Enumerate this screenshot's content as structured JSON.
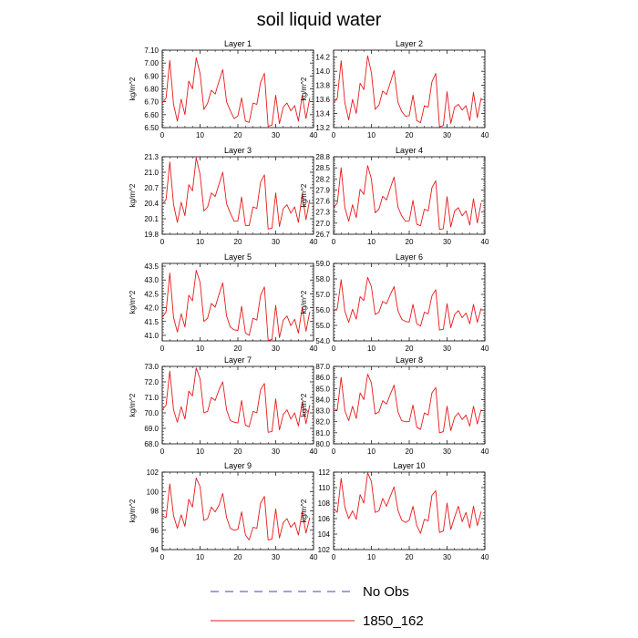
{
  "figure_title": "soil liquid water",
  "legend": [
    {
      "label": "No Obs",
      "color": "#4a3fa8",
      "style": "dashed"
    },
    {
      "label": "1850_162",
      "color": "#e8191a",
      "style": "solid"
    }
  ],
  "series_color": "#e8191a",
  "chart_data": [
    {
      "type": "line",
      "title": "Layer 1",
      "ylabel": "kg/m^2",
      "xlim": [
        0,
        40
      ],
      "xticks": [
        0,
        10,
        20,
        30,
        40
      ],
      "ylim": [
        6.5,
        7.1
      ],
      "yticks": [
        "6.50",
        "6.60",
        "6.70",
        "6.80",
        "6.90",
        "7.00",
        "7.10"
      ],
      "series": [
        {
          "name": "1850_162",
          "x": [
            0,
            1,
            2,
            3,
            4,
            5,
            6,
            7,
            8,
            9,
            10,
            11,
            12,
            13,
            14,
            15,
            16,
            17,
            18,
            19,
            20,
            21,
            22,
            23,
            24,
            25,
            26,
            27,
            28,
            29,
            30,
            31,
            32,
            33,
            34,
            35,
            36,
            37,
            38,
            39
          ],
          "y": [
            6.69,
            6.73,
            7.02,
            6.68,
            6.55,
            6.72,
            6.6,
            6.86,
            6.8,
            7.04,
            6.92,
            6.64,
            6.69,
            6.79,
            6.76,
            6.86,
            6.95,
            6.7,
            6.63,
            6.57,
            6.59,
            6.73,
            6.55,
            6.54,
            6.69,
            6.68,
            6.85,
            6.92,
            6.51,
            6.52,
            6.75,
            6.53,
            6.66,
            6.69,
            6.63,
            6.67,
            6.55,
            6.75,
            6.57,
            6.73
          ]
        }
      ]
    },
    {
      "type": "line",
      "title": "Layer 2",
      "ylabel": "kg/m^2",
      "xlim": [
        0,
        40
      ],
      "xticks": [
        0,
        10,
        20,
        30,
        40
      ],
      "ylim": [
        13.2,
        14.3
      ],
      "yticks": [
        "13.2",
        "13.4",
        "13.6",
        "13.8",
        "14.0",
        "14.2"
      ],
      "series": [
        {
          "name": "1850_162",
          "x": [
            0,
            1,
            2,
            3,
            4,
            5,
            6,
            7,
            8,
            9,
            10,
            11,
            12,
            13,
            14,
            15,
            16,
            17,
            18,
            19,
            20,
            21,
            22,
            23,
            24,
            25,
            26,
            27,
            28,
            29,
            30,
            31,
            32,
            33,
            34,
            35,
            36,
            37,
            38,
            39
          ],
          "y": [
            13.55,
            13.62,
            14.15,
            13.55,
            13.31,
            13.6,
            13.4,
            13.83,
            13.74,
            14.22,
            13.98,
            13.46,
            13.52,
            13.72,
            13.67,
            13.84,
            14.01,
            13.56,
            13.43,
            13.36,
            13.37,
            13.66,
            13.3,
            13.27,
            13.51,
            13.49,
            13.85,
            13.97,
            13.21,
            13.23,
            13.71,
            13.26,
            13.49,
            13.53,
            13.45,
            13.51,
            13.3,
            13.7,
            13.34,
            13.62
          ]
        }
      ]
    },
    {
      "type": "line",
      "title": "Layer 3",
      "ylabel": "kg/m^2",
      "xlim": [
        0,
        40
      ],
      "xticks": [
        0,
        10,
        20,
        30,
        40
      ],
      "ylim": [
        19.8,
        21.3
      ],
      "yticks": [
        "19.8",
        "20.1",
        "20.4",
        "20.7",
        "21.0",
        "21.3"
      ],
      "series": [
        {
          "name": "1850_162",
          "x": [
            0,
            1,
            2,
            3,
            4,
            5,
            6,
            7,
            8,
            9,
            10,
            11,
            12,
            13,
            14,
            15,
            16,
            17,
            18,
            19,
            20,
            21,
            22,
            23,
            24,
            25,
            26,
            27,
            28,
            29,
            30,
            31,
            32,
            33,
            34,
            35,
            36,
            37,
            38,
            39
          ],
          "y": [
            20.38,
            20.47,
            21.2,
            20.38,
            20.03,
            20.42,
            20.16,
            20.76,
            20.64,
            21.28,
            20.96,
            20.25,
            20.33,
            20.6,
            20.53,
            20.77,
            21.0,
            20.39,
            20.21,
            20.05,
            20.06,
            20.52,
            19.97,
            19.97,
            20.33,
            20.3,
            20.81,
            20.95,
            19.9,
            19.92,
            20.6,
            19.95,
            20.3,
            20.37,
            20.21,
            20.33,
            20.03,
            20.58,
            20.08,
            20.47
          ]
        }
      ]
    },
    {
      "type": "line",
      "title": "Layer 4",
      "ylabel": "kg/m^2",
      "xlim": [
        0,
        40
      ],
      "xticks": [
        0,
        10,
        20,
        30,
        40
      ],
      "ylim": [
        26.7,
        28.8
      ],
      "yticks": [
        "26.7",
        "27.0",
        "27.3",
        "27.6",
        "27.9",
        "28.2",
        "28.5",
        "28.8"
      ],
      "series": [
        {
          "name": "1850_162",
          "x": [
            0,
            1,
            2,
            3,
            4,
            5,
            6,
            7,
            8,
            9,
            10,
            11,
            12,
            13,
            14,
            15,
            16,
            17,
            18,
            19,
            20,
            21,
            22,
            23,
            24,
            25,
            26,
            27,
            28,
            29,
            30,
            31,
            32,
            33,
            34,
            35,
            36,
            37,
            38,
            39
          ],
          "y": [
            27.42,
            27.55,
            28.5,
            27.42,
            27.05,
            27.5,
            27.15,
            27.92,
            27.78,
            28.56,
            28.2,
            27.28,
            27.38,
            27.73,
            27.63,
            27.96,
            28.25,
            27.44,
            27.2,
            27.05,
            27.06,
            27.62,
            26.97,
            26.93,
            27.38,
            27.33,
            27.96,
            28.15,
            26.83,
            26.85,
            27.72,
            26.9,
            27.33,
            27.42,
            27.2,
            27.33,
            26.95,
            27.66,
            27.01,
            27.55
          ]
        }
      ]
    },
    {
      "type": "line",
      "title": "Layer 5",
      "ylabel": "kg/m^2",
      "xlim": [
        0,
        40
      ],
      "xticks": [
        0,
        10,
        20,
        30,
        40
      ],
      "ylim": [
        40.8,
        43.6
      ],
      "yticks": [
        "41.0",
        "41.5",
        "42.0",
        "42.5",
        "43.0",
        "43.5"
      ],
      "series": [
        {
          "name": "1850_162",
          "x": [
            0,
            1,
            2,
            3,
            4,
            5,
            6,
            7,
            8,
            9,
            10,
            11,
            12,
            13,
            14,
            15,
            16,
            17,
            18,
            19,
            20,
            21,
            22,
            23,
            24,
            25,
            26,
            27,
            28,
            29,
            30,
            31,
            32,
            33,
            34,
            35,
            36,
            37,
            38,
            39
          ],
          "y": [
            41.65,
            41.85,
            43.25,
            41.65,
            41.12,
            41.78,
            41.3,
            42.45,
            42.25,
            43.35,
            42.92,
            41.5,
            41.62,
            42.15,
            42.02,
            42.48,
            42.9,
            41.7,
            41.3,
            41.2,
            41.18,
            42.05,
            41.08,
            41.0,
            41.62,
            41.55,
            42.45,
            42.75,
            40.82,
            40.85,
            42.08,
            40.92,
            41.55,
            41.7,
            41.35,
            41.58,
            41.08,
            42.02,
            41.15,
            41.85
          ]
        }
      ]
    },
    {
      "type": "line",
      "title": "Layer 6",
      "ylabel": "kg/m^2",
      "xlim": [
        0,
        40
      ],
      "xticks": [
        0,
        10,
        20,
        30,
        40
      ],
      "ylim": [
        54.0,
        59.0
      ],
      "yticks": [
        "54.0",
        "55.0",
        "56.0",
        "57.0",
        "58.0",
        "59.0"
      ],
      "series": [
        {
          "name": "1850_162",
          "x": [
            0,
            1,
            2,
            3,
            4,
            5,
            6,
            7,
            8,
            9,
            10,
            11,
            12,
            13,
            14,
            15,
            16,
            17,
            18,
            19,
            20,
            21,
            22,
            23,
            24,
            25,
            26,
            27,
            28,
            29,
            30,
            31,
            32,
            33,
            34,
            35,
            36,
            37,
            38,
            39
          ],
          "y": [
            55.9,
            56.1,
            57.95,
            55.9,
            55.2,
            56.05,
            55.4,
            56.85,
            56.6,
            58.1,
            57.5,
            55.7,
            55.85,
            56.55,
            56.4,
            57.0,
            57.5,
            55.95,
            55.4,
            55.25,
            55.22,
            56.35,
            55.1,
            54.95,
            55.85,
            55.75,
            56.9,
            57.3,
            54.7,
            54.75,
            56.4,
            54.85,
            55.7,
            55.95,
            55.5,
            55.8,
            55.1,
            56.35,
            55.2,
            56.1
          ]
        }
      ]
    },
    {
      "type": "line",
      "title": "Layer 7",
      "ylabel": "kg/m^2",
      "xlim": [
        0,
        40
      ],
      "xticks": [
        0,
        10,
        20,
        30,
        40
      ],
      "ylim": [
        68.0,
        73.0
      ],
      "yticks": [
        "68.0",
        "69.0",
        "70.0",
        "71.0",
        "72.0",
        "73.0"
      ],
      "series": [
        {
          "name": "1850_162",
          "x": [
            0,
            1,
            2,
            3,
            4,
            5,
            6,
            7,
            8,
            9,
            10,
            11,
            12,
            13,
            14,
            15,
            16,
            17,
            18,
            19,
            20,
            21,
            22,
            23,
            24,
            25,
            26,
            27,
            28,
            29,
            30,
            31,
            32,
            33,
            34,
            35,
            36,
            37,
            38,
            39
          ],
          "y": [
            70.2,
            70.5,
            72.7,
            70.2,
            69.4,
            70.4,
            69.6,
            71.4,
            71.1,
            72.9,
            72.2,
            70.0,
            70.1,
            71.0,
            70.8,
            71.5,
            72.0,
            70.2,
            69.5,
            69.4,
            69.35,
            70.8,
            69.2,
            69.1,
            70.1,
            70.0,
            71.5,
            71.9,
            68.75,
            68.8,
            70.9,
            68.9,
            69.9,
            70.2,
            69.6,
            70.0,
            69.15,
            70.7,
            69.3,
            70.5
          ]
        }
      ]
    },
    {
      "type": "line",
      "title": "Layer 8",
      "ylabel": "kg/m^2",
      "xlim": [
        0,
        40
      ],
      "xticks": [
        0,
        10,
        20,
        30,
        40
      ],
      "ylim": [
        80.0,
        87.0
      ],
      "yticks": [
        "80.0",
        "81.0",
        "82.0",
        "83.0",
        "84.0",
        "85.0",
        "86.0",
        "87.0"
      ],
      "series": [
        {
          "name": "1850_162",
          "x": [
            0,
            1,
            2,
            3,
            4,
            5,
            6,
            7,
            8,
            9,
            10,
            11,
            12,
            13,
            14,
            15,
            16,
            17,
            18,
            19,
            20,
            21,
            22,
            23,
            24,
            25,
            26,
            27,
            28,
            29,
            30,
            31,
            32,
            33,
            34,
            35,
            36,
            37,
            38,
            39
          ],
          "y": [
            83.0,
            83.1,
            86.0,
            83.0,
            82.1,
            83.4,
            82.3,
            84.6,
            84.0,
            86.3,
            85.5,
            82.7,
            82.9,
            83.9,
            83.6,
            84.5,
            85.3,
            82.9,
            82.1,
            82.0,
            82.0,
            83.5,
            81.5,
            81.3,
            82.8,
            82.6,
            84.6,
            85.1,
            81.0,
            81.1,
            83.4,
            81.2,
            82.4,
            82.8,
            82.2,
            82.6,
            81.6,
            83.4,
            81.8,
            83.1
          ]
        }
      ]
    },
    {
      "type": "line",
      "title": "Layer 9",
      "ylabel": "kg/m^2",
      "xlim": [
        0,
        40
      ],
      "xticks": [
        0,
        10,
        20,
        30,
        40
      ],
      "ylim": [
        94,
        102
      ],
      "yticks": [
        "94",
        "96",
        "98",
        "100",
        "102"
      ],
      "series": [
        {
          "name": "1850_162",
          "x": [
            0,
            1,
            2,
            3,
            4,
            5,
            6,
            7,
            8,
            9,
            10,
            11,
            12,
            13,
            14,
            15,
            16,
            17,
            18,
            19,
            20,
            21,
            22,
            23,
            24,
            25,
            26,
            27,
            28,
            29,
            30,
            31,
            32,
            33,
            34,
            35,
            36,
            37,
            38,
            39
          ],
          "y": [
            97.5,
            97.3,
            100.8,
            97.5,
            96.2,
            97.6,
            96.4,
            99.2,
            98.4,
            101.4,
            100.5,
            97.0,
            97.2,
            98.4,
            97.9,
            98.6,
            99.8,
            97.3,
            96.2,
            96.0,
            96.1,
            97.9,
            95.5,
            95.0,
            96.3,
            96.2,
            98.8,
            99.5,
            95.0,
            95.1,
            98.2,
            95.2,
            96.8,
            97.2,
            96.3,
            96.8,
            95.5,
            97.9,
            95.7,
            97.3
          ]
        }
      ]
    },
    {
      "type": "line",
      "title": "Layer 10",
      "ylabel": "kg/m^2",
      "xlim": [
        0,
        40
      ],
      "xticks": [
        0,
        10,
        20,
        30,
        40
      ],
      "ylim": [
        102,
        112
      ],
      "yticks": [
        "102",
        "104",
        "106",
        "108",
        "110",
        "112"
      ],
      "series": [
        {
          "name": "1850_162",
          "x": [
            0,
            1,
            2,
            3,
            4,
            5,
            6,
            7,
            8,
            9,
            10,
            11,
            12,
            13,
            14,
            15,
            16,
            17,
            18,
            19,
            20,
            21,
            22,
            23,
            24,
            25,
            26,
            27,
            28,
            29,
            30,
            31,
            32,
            33,
            34,
            35,
            36,
            37,
            38,
            39
          ],
          "y": [
            107.3,
            106.8,
            111.2,
            107.5,
            106.0,
            107.0,
            105.9,
            109.1,
            108.0,
            111.9,
            110.8,
            106.8,
            107.0,
            108.6,
            107.6,
            108.9,
            110.1,
            107.1,
            105.8,
            105.5,
            105.8,
            107.6,
            105.1,
            104.1,
            105.9,
            105.7,
            109.0,
            109.6,
            104.2,
            104.4,
            108.0,
            104.6,
            106.2,
            107.6,
            105.6,
            106.8,
            104.8,
            107.6,
            105.1,
            106.9
          ]
        }
      ]
    }
  ]
}
